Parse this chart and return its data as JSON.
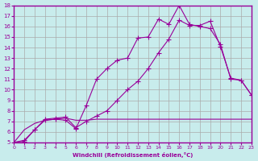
{
  "xlabel": "Windchill (Refroidissement éolien,°C)",
  "xlim": [
    0,
    23
  ],
  "ylim": [
    5,
    18
  ],
  "xticks": [
    0,
    1,
    2,
    3,
    4,
    5,
    6,
    7,
    8,
    9,
    10,
    11,
    12,
    13,
    14,
    15,
    16,
    17,
    18,
    19,
    20,
    21,
    22,
    23
  ],
  "yticks": [
    5,
    6,
    7,
    8,
    9,
    10,
    11,
    12,
    13,
    14,
    15,
    16,
    17,
    18
  ],
  "bg_color": "#c8ecec",
  "line_color": "#990099",
  "grid_color": "#aaaaaa",
  "line1_x": [
    0,
    1,
    2,
    3,
    4,
    5,
    6,
    7,
    8,
    9,
    10,
    11,
    12,
    13,
    14,
    15,
    16,
    17,
    18,
    19,
    20,
    21,
    22,
    23
  ],
  "line1_y": [
    5.0,
    5.2,
    6.2,
    7.1,
    7.2,
    7.1,
    6.3,
    8.5,
    11.0,
    12.0,
    12.8,
    13.0,
    14.9,
    15.0,
    16.7,
    16.2,
    18.0,
    16.2,
    16.0,
    15.8,
    14.3,
    11.0,
    10.9,
    9.5
  ],
  "line2_x": [
    0,
    1,
    2,
    3,
    4,
    5,
    6,
    7,
    8,
    9,
    10,
    11,
    12,
    13,
    14,
    15,
    16,
    17,
    18,
    19,
    20,
    21,
    22,
    23
  ],
  "line2_y": [
    5.0,
    5.1,
    6.2,
    7.2,
    7.3,
    7.4,
    6.4,
    7.0,
    7.5,
    8.0,
    9.0,
    10.0,
    10.8,
    12.0,
    13.5,
    14.8,
    16.6,
    16.1,
    16.1,
    16.5,
    14.1,
    11.1,
    10.9,
    9.5
  ],
  "line3_x": [
    0,
    1,
    2,
    3,
    4,
    5,
    6,
    7,
    8,
    9,
    10,
    11,
    12,
    13,
    14,
    15,
    16,
    17,
    18,
    19,
    20,
    21,
    22,
    23
  ],
  "line3_y": [
    5.0,
    6.2,
    6.8,
    7.1,
    7.2,
    7.3,
    7.1,
    7.1,
    7.2,
    7.2,
    7.2,
    7.2,
    7.2,
    7.2,
    7.2,
    7.2,
    7.2,
    7.2,
    7.2,
    7.2,
    7.2,
    7.2,
    7.2,
    7.2
  ]
}
